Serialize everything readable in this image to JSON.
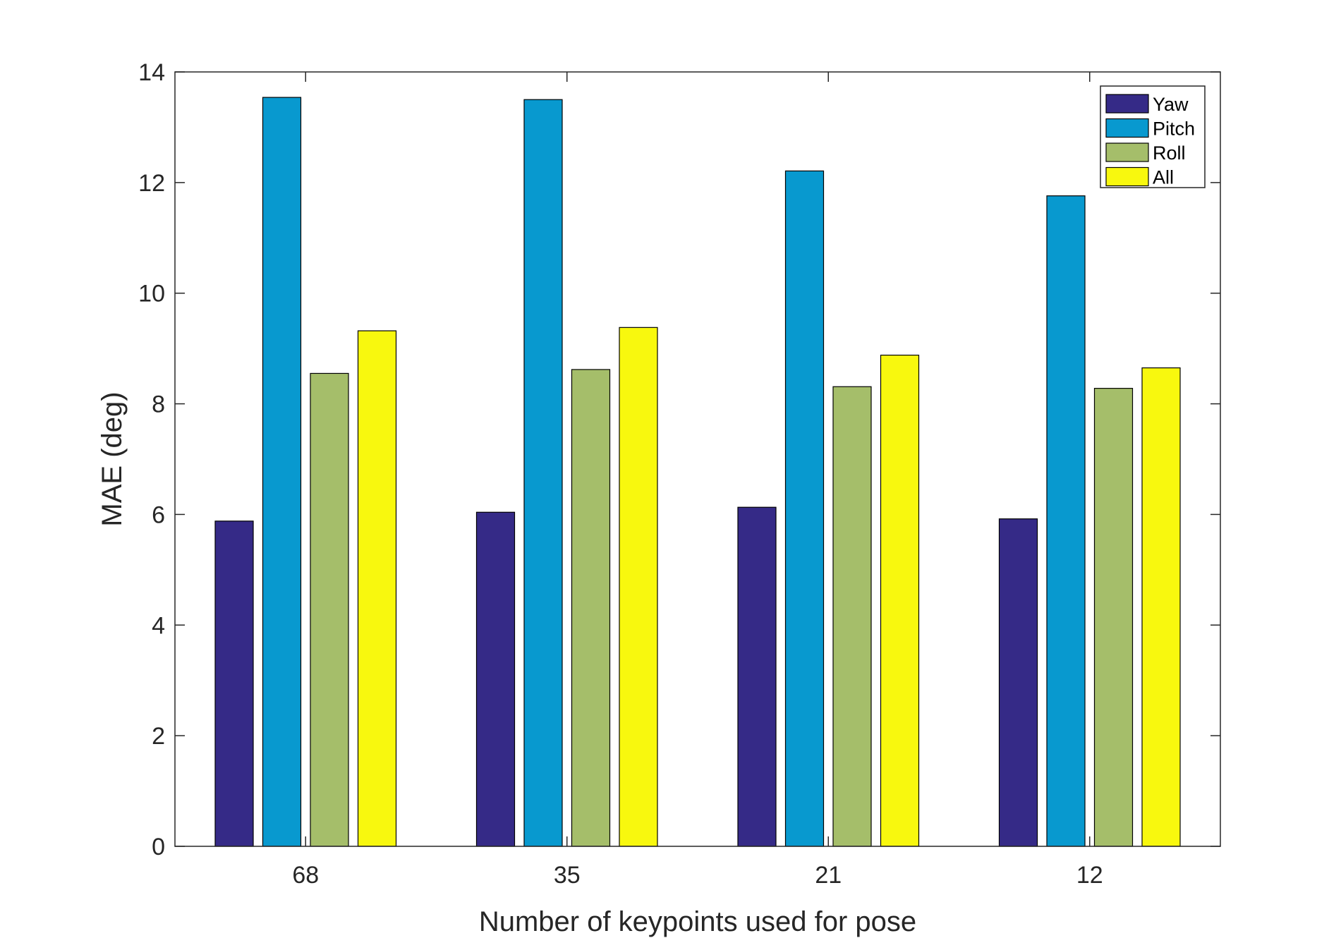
{
  "chart_data": {
    "type": "bar",
    "title": "",
    "xlabel": "Number of keypoints used for pose",
    "ylabel": "MAE (deg)",
    "categories": [
      "68",
      "35",
      "21",
      "12"
    ],
    "ylim": [
      0,
      14
    ],
    "yticks": [
      0,
      2,
      4,
      6,
      8,
      10,
      12,
      14
    ],
    "ytick_labels": [
      "0",
      "2",
      "4",
      "6",
      "8",
      "10",
      "12",
      "14"
    ],
    "grid": false,
    "legend_position": "top-right",
    "series": [
      {
        "name": "Yaw",
        "color": "#352a87",
        "values": [
          5.88,
          6.04,
          6.13,
          5.92
        ]
      },
      {
        "name": "Pitch",
        "color": "#0899cf",
        "values": [
          13.54,
          13.5,
          12.21,
          11.76
        ]
      },
      {
        "name": "Roll",
        "color": "#a5be6a",
        "values": [
          8.55,
          8.62,
          8.31,
          8.28
        ]
      },
      {
        "name": "All",
        "color": "#f8f80e",
        "values": [
          9.32,
          9.38,
          8.88,
          8.65
        ]
      }
    ]
  }
}
